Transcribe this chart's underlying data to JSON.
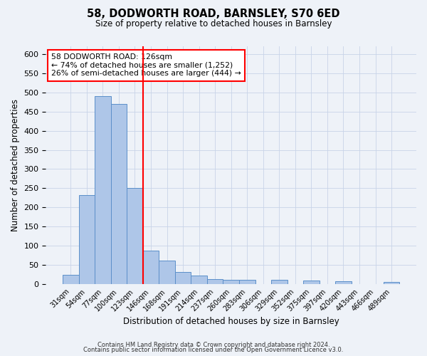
{
  "title": "58, DODWORTH ROAD, BARNSLEY, S70 6ED",
  "subtitle": "Size of property relative to detached houses in Barnsley",
  "xlabel": "Distribution of detached houses by size in Barnsley",
  "ylabel": "Number of detached properties",
  "bar_labels": [
    "31sqm",
    "54sqm",
    "77sqm",
    "100sqm",
    "123sqm",
    "146sqm",
    "168sqm",
    "191sqm",
    "214sqm",
    "237sqm",
    "260sqm",
    "283sqm",
    "306sqm",
    "329sqm",
    "352sqm",
    "375sqm",
    "397sqm",
    "420sqm",
    "443sqm",
    "466sqm",
    "489sqm"
  ],
  "bar_values": [
    25,
    232,
    490,
    470,
    250,
    88,
    62,
    31,
    23,
    13,
    11,
    11,
    0,
    11,
    0,
    9,
    0,
    8,
    0,
    0,
    5
  ],
  "bar_color": "#aec6e8",
  "bar_edge_color": "#5b8fc9",
  "vline_color": "red",
  "annotation_line1": "58 DODWORTH ROAD: 126sqm",
  "annotation_line2": "← 74% of detached houses are smaller (1,252)",
  "annotation_line3": "26% of semi-detached houses are larger (444) →",
  "annotation_box_color": "white",
  "annotation_box_edge": "red",
  "ylim": [
    0,
    620
  ],
  "yticks": [
    0,
    50,
    100,
    150,
    200,
    250,
    300,
    350,
    400,
    450,
    500,
    550,
    600
  ],
  "footer1": "Contains HM Land Registry data © Crown copyright and database right 2024.",
  "footer2": "Contains public sector information licensed under the Open Government Licence v3.0.",
  "background_color": "#eef2f8",
  "grid_color": "#c8d4e8"
}
